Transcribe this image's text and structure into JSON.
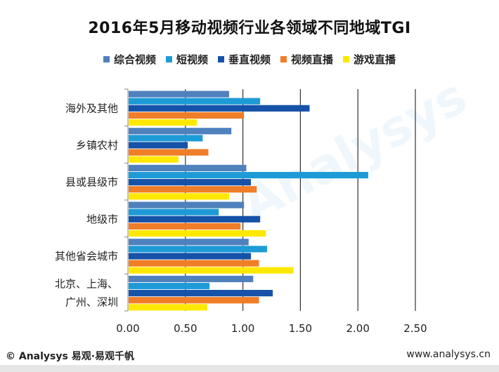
{
  "chart_data": {
    "type": "bar",
    "orientation": "horizontal",
    "title": "2016年5月移动视频行业各领域不同地域TGI",
    "categories": [
      "海外及其他",
      "乡镇农村",
      "县或县级市",
      "地级市",
      "其他省会城市",
      "北京、上海、广州、深圳"
    ],
    "category_label_lines": [
      [
        "海外及其他"
      ],
      [
        "乡镇农村"
      ],
      [
        "县或县级市"
      ],
      [
        "地级市"
      ],
      [
        "其他省会城市"
      ],
      [
        "北京、上海、",
        "广州、深圳"
      ]
    ],
    "series": [
      {
        "name": "综合视频",
        "color": "#4F81BD",
        "values": [
          0.88,
          0.9,
          1.03,
          1.01,
          1.05,
          1.09
        ]
      },
      {
        "name": "短视频",
        "color": "#1E9BD7",
        "values": [
          1.15,
          0.65,
          2.09,
          0.79,
          1.21,
          0.71
        ]
      },
      {
        "name": "垂直视频",
        "color": "#1552A8",
        "values": [
          1.58,
          0.52,
          1.07,
          1.15,
          1.07,
          1.26
        ]
      },
      {
        "name": "视频直播",
        "color": "#F07D28",
        "values": [
          1.01,
          0.7,
          1.12,
          0.98,
          1.14,
          1.14
        ]
      },
      {
        "name": "游戏直播",
        "color": "#FFE800",
        "values": [
          0.6,
          0.44,
          0.88,
          1.2,
          1.44,
          0.69
        ]
      }
    ],
    "xlim": [
      0,
      2.5
    ],
    "xticks": [
      "0.00",
      "0.50",
      "1.00",
      "1.50",
      "2.00",
      "2.50"
    ],
    "grid": true
  },
  "footer": {
    "left": "© Analysys 易观·易观千帆",
    "right": "www.analysys.cn"
  },
  "watermark": "Analysys"
}
